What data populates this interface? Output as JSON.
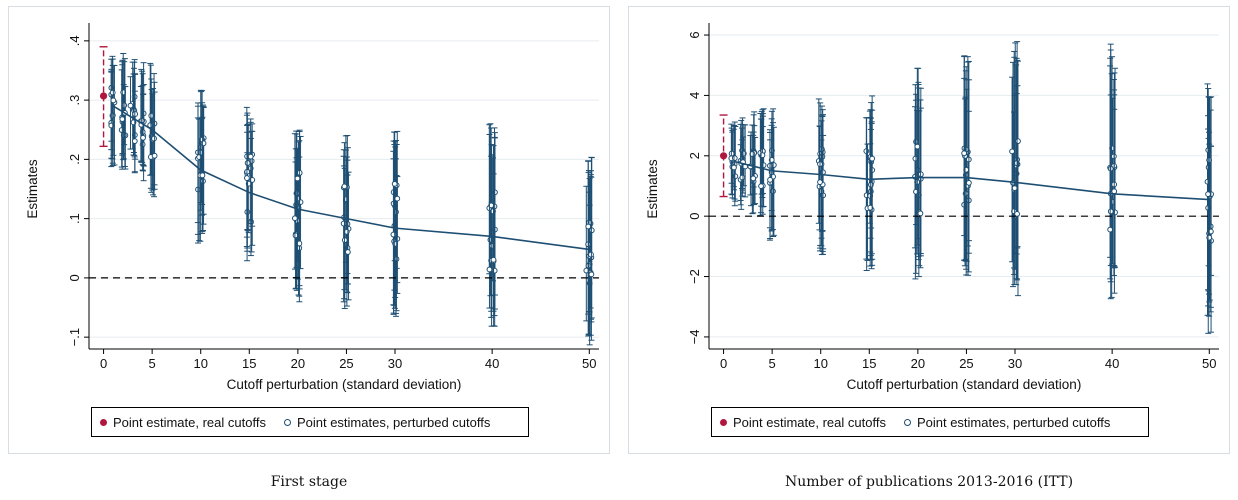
{
  "chart_data": [
    {
      "type": "scatter",
      "caption": "First stage",
      "xlabel": "Cutoff perturbation (standard deviation)",
      "ylabel": "Estimates",
      "x_ticks": [
        "0",
        "5",
        "10",
        "15",
        "20",
        "25",
        "30",
        "40",
        "50"
      ],
      "x_tick_values": [
        0,
        5,
        10,
        15,
        20,
        25,
        30,
        40,
        50
      ],
      "y_ticks": [
        ".4",
        ".3",
        ".2",
        ".1",
        "0",
        "−.1"
      ],
      "y_tick_values": [
        0.4,
        0.3,
        0.2,
        0.1,
        0,
        -0.1
      ],
      "ylim": [
        -0.12,
        0.42
      ],
      "reference_line_y": 0,
      "legend": {
        "real": "Point estimate, real cutoffs",
        "perturbed": "Point estimates, perturbed cutoffs"
      },
      "real_estimate": {
        "x": 0,
        "y": 0.307,
        "ci": [
          0.222,
          0.39
        ]
      },
      "mean_line": [
        {
          "x": 1,
          "y": 0.29
        },
        {
          "x": 2,
          "y": 0.28
        },
        {
          "x": 3,
          "y": 0.27
        },
        {
          "x": 4,
          "y": 0.26
        },
        {
          "x": 5,
          "y": 0.25
        },
        {
          "x": 10,
          "y": 0.182
        },
        {
          "x": 15,
          "y": 0.144
        },
        {
          "x": 20,
          "y": 0.116
        },
        {
          "x": 25,
          "y": 0.1
        },
        {
          "x": 30,
          "y": 0.084
        },
        {
          "x": 40,
          "y": 0.07
        },
        {
          "x": 50,
          "y": 0.048
        }
      ],
      "perturbed_spread": [
        {
          "x": 1,
          "center": 0.29,
          "pt_lo": 0.25,
          "pt_hi": 0.33,
          "ci_lo": 0.185,
          "ci_hi": 0.375
        },
        {
          "x": 2,
          "center": 0.28,
          "pt_lo": 0.24,
          "pt_hi": 0.32,
          "ci_lo": 0.18,
          "ci_hi": 0.385
        },
        {
          "x": 3,
          "center": 0.27,
          "pt_lo": 0.23,
          "pt_hi": 0.31,
          "ci_lo": 0.17,
          "ci_hi": 0.375
        },
        {
          "x": 4,
          "center": 0.26,
          "pt_lo": 0.22,
          "pt_hi": 0.3,
          "ci_lo": 0.155,
          "ci_hi": 0.365
        },
        {
          "x": 5,
          "center": 0.25,
          "pt_lo": 0.2,
          "pt_hi": 0.29,
          "ci_lo": 0.135,
          "ci_hi": 0.372
        },
        {
          "x": 10,
          "center": 0.182,
          "pt_lo": 0.13,
          "pt_hi": 0.25,
          "ci_lo": 0.058,
          "ci_hi": 0.32
        },
        {
          "x": 15,
          "center": 0.144,
          "pt_lo": 0.09,
          "pt_hi": 0.21,
          "ci_lo": 0.02,
          "ci_hi": 0.288
        },
        {
          "x": 20,
          "center": 0.116,
          "pt_lo": 0.05,
          "pt_hi": 0.18,
          "ci_lo": -0.042,
          "ci_hi": 0.25
        },
        {
          "x": 25,
          "center": 0.1,
          "pt_lo": 0.03,
          "pt_hi": 0.17,
          "ci_lo": -0.052,
          "ci_hi": 0.243
        },
        {
          "x": 30,
          "center": 0.084,
          "pt_lo": 0.01,
          "pt_hi": 0.16,
          "ci_lo": -0.07,
          "ci_hi": 0.25
        },
        {
          "x": 40,
          "center": 0.07,
          "pt_lo": -0.01,
          "pt_hi": 0.15,
          "ci_lo": -0.082,
          "ci_hi": 0.265
        },
        {
          "x": 50,
          "center": 0.048,
          "pt_lo": -0.04,
          "pt_hi": 0.13,
          "ci_lo": -0.118,
          "ci_hi": 0.207
        }
      ],
      "grid": true,
      "legend_position": "bottom"
    },
    {
      "type": "scatter",
      "caption": "Number of publications 2013-2016 (ITT)",
      "xlabel": "Cutoff perturbation (standard deviation)",
      "ylabel": "Estimates",
      "x_ticks": [
        "0",
        "5",
        "10",
        "15",
        "20",
        "25",
        "30",
        "40",
        "50"
      ],
      "x_tick_values": [
        0,
        5,
        10,
        15,
        20,
        25,
        30,
        40,
        50
      ],
      "y_ticks": [
        "6",
        "4",
        "2",
        "0",
        "−2",
        "−4"
      ],
      "y_tick_values": [
        6,
        4,
        2,
        0,
        -2,
        -4
      ],
      "ylim": [
        -4.4,
        6.2
      ],
      "reference_line_y": 0,
      "legend": {
        "real": "Point estimate, real cutoffs",
        "perturbed": "Point estimates, perturbed cutoffs"
      },
      "real_estimate": {
        "x": 0,
        "y": 2.0,
        "ci": [
          0.65,
          3.35
        ]
      },
      "mean_line": [
        {
          "x": 1,
          "y": 1.82
        },
        {
          "x": 2,
          "y": 1.74
        },
        {
          "x": 3,
          "y": 1.66
        },
        {
          "x": 4,
          "y": 1.58
        },
        {
          "x": 5,
          "y": 1.5
        },
        {
          "x": 10,
          "y": 1.38
        },
        {
          "x": 15,
          "y": 1.22
        },
        {
          "x": 20,
          "y": 1.28
        },
        {
          "x": 25,
          "y": 1.28
        },
        {
          "x": 30,
          "y": 1.12
        },
        {
          "x": 40,
          "y": 0.74
        },
        {
          "x": 50,
          "y": 0.55
        }
      ],
      "perturbed_spread": [
        {
          "x": 1,
          "center": 1.82,
          "pt_lo": 1.3,
          "pt_hi": 2.2,
          "ci_lo": 0.3,
          "ci_hi": 3.25
        },
        {
          "x": 2,
          "center": 1.74,
          "pt_lo": 1.2,
          "pt_hi": 2.2,
          "ci_lo": 0.2,
          "ci_hi": 3.3
        },
        {
          "x": 3,
          "center": 1.66,
          "pt_lo": 1.1,
          "pt_hi": 2.2,
          "ci_lo": 0.0,
          "ci_hi": 3.5
        },
        {
          "x": 4,
          "center": 1.58,
          "pt_lo": 0.9,
          "pt_hi": 2.2,
          "ci_lo": -0.1,
          "ci_hi": 3.6
        },
        {
          "x": 5,
          "center": 1.5,
          "pt_lo": 0.7,
          "pt_hi": 2.3,
          "ci_lo": -1.0,
          "ci_hi": 3.6
        },
        {
          "x": 10,
          "center": 1.38,
          "pt_lo": 0.4,
          "pt_hi": 2.3,
          "ci_lo": -1.4,
          "ci_hi": 3.9
        },
        {
          "x": 15,
          "center": 1.22,
          "pt_lo": 0.2,
          "pt_hi": 2.2,
          "ci_lo": -1.9,
          "ci_hi": 4.1
        },
        {
          "x": 20,
          "center": 1.28,
          "pt_lo": 0.0,
          "pt_hi": 2.6,
          "ci_lo": -2.1,
          "ci_hi": 5.3
        },
        {
          "x": 25,
          "center": 1.28,
          "pt_lo": 0.0,
          "pt_hi": 2.6,
          "ci_lo": -2.0,
          "ci_hi": 5.4
        },
        {
          "x": 30,
          "center": 1.12,
          "pt_lo": -0.2,
          "pt_hi": 2.7,
          "ci_lo": -2.8,
          "ci_hi": 5.9
        },
        {
          "x": 40,
          "center": 0.74,
          "pt_lo": -0.6,
          "pt_hi": 2.3,
          "ci_lo": -2.8,
          "ci_hi": 5.7
        },
        {
          "x": 50,
          "center": 0.55,
          "pt_lo": -1.0,
          "pt_hi": 2.2,
          "ci_lo": -4.1,
          "ci_hi": 4.4
        }
      ],
      "grid": true,
      "legend_position": "bottom"
    }
  ],
  "colors": {
    "real": "#b0173f",
    "perturbed": "#1e4f73",
    "grid": "#e6ebef",
    "reference": "#000000"
  }
}
